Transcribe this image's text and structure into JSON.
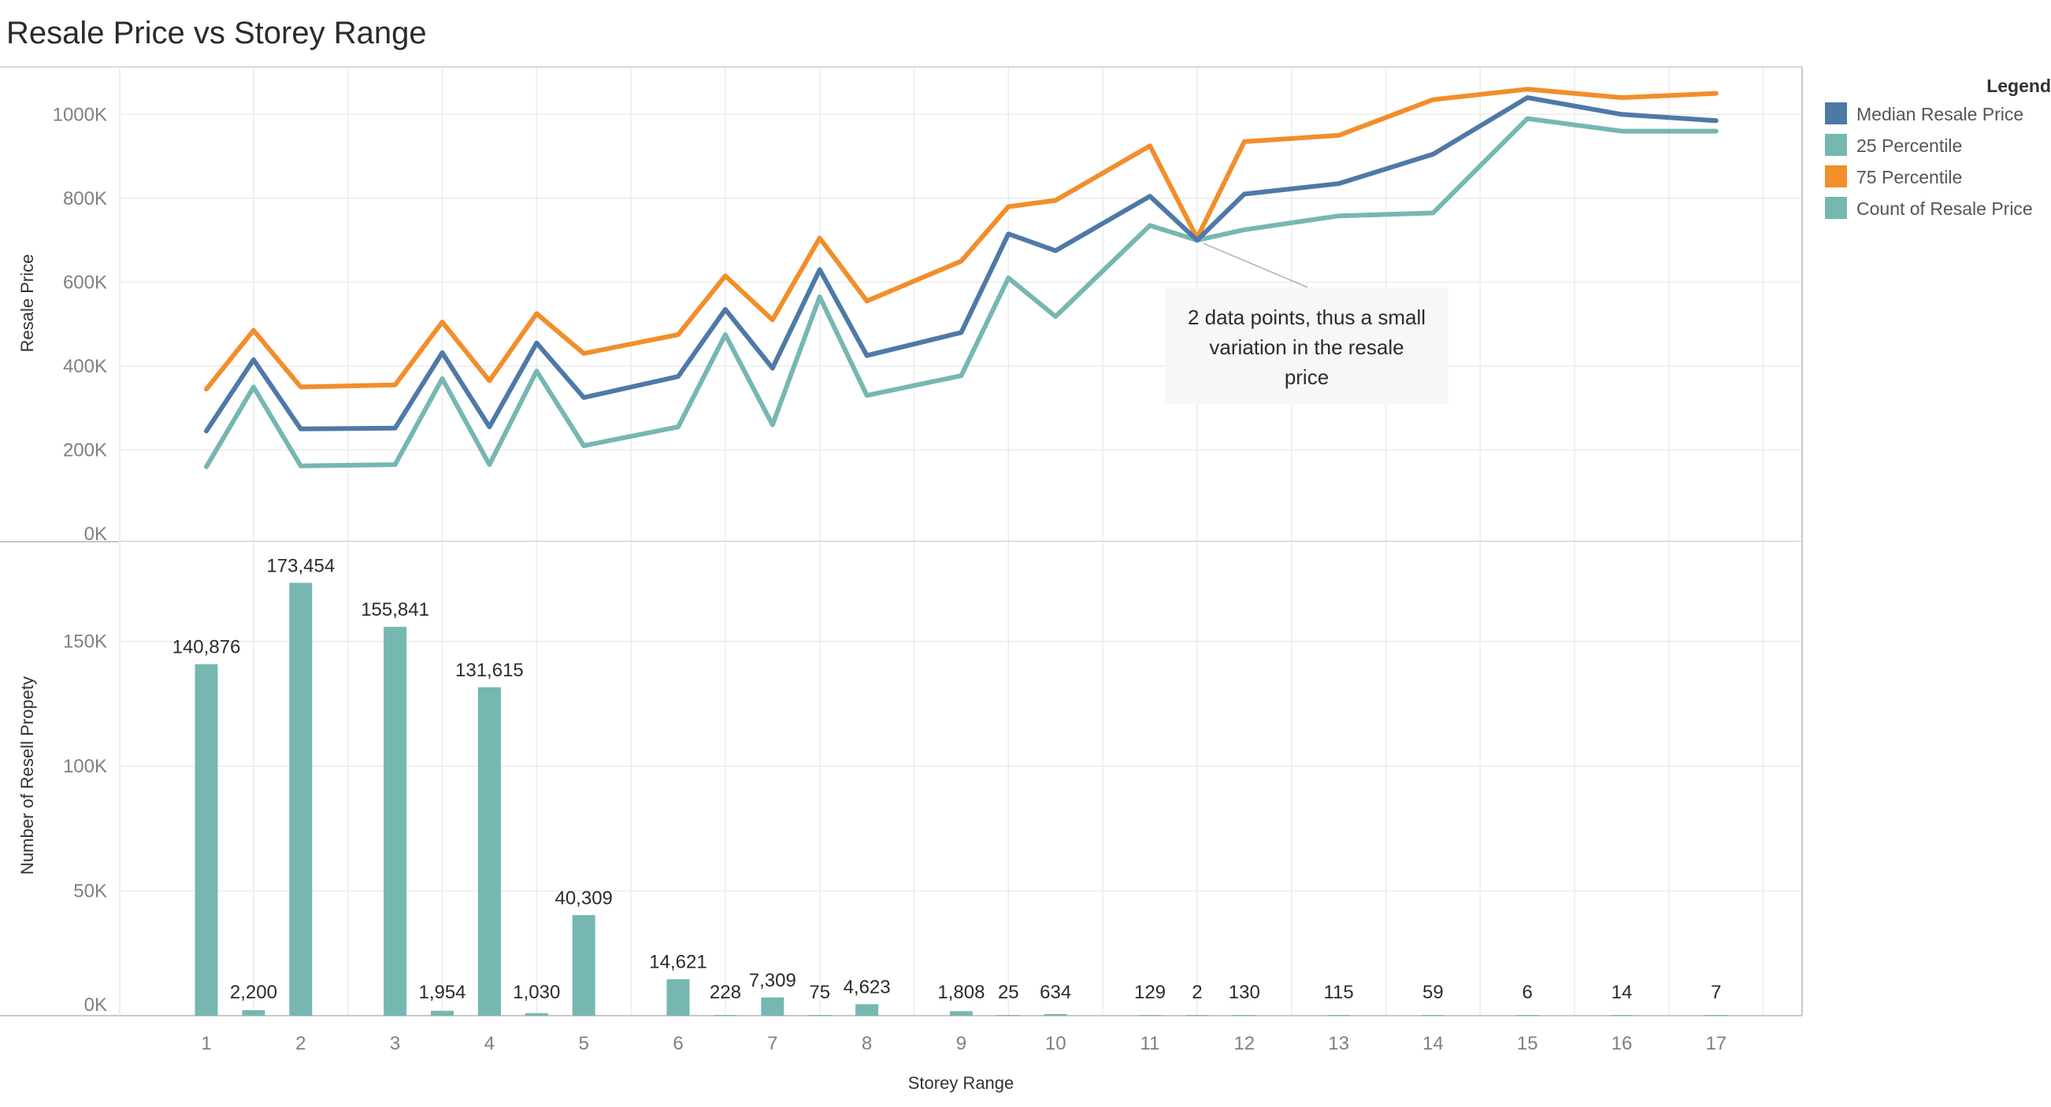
{
  "chart_data": {
    "title": "Resale Price vs Storey Range",
    "xlabel": "Storey Range",
    "type": "line+bar",
    "x_ticks": [
      "1",
      "2",
      "3",
      "4",
      "5",
      "6",
      "7",
      "8",
      "9",
      "10",
      "11",
      "12",
      "13",
      "14",
      "15",
      "16",
      "17"
    ],
    "x": [
      1,
      1.5,
      2,
      3,
      3.5,
      4,
      4.5,
      5,
      6,
      6.5,
      7,
      7.5,
      8,
      9,
      9.5,
      10,
      11,
      11.5,
      12,
      13,
      14,
      15,
      16,
      17
    ],
    "price_panel": {
      "ylabel": "Resale Price",
      "ylim": [
        0,
        1100000
      ],
      "y_ticks": [
        0,
        200000,
        400000,
        600000,
        800000,
        1000000
      ],
      "y_tick_labels": [
        "0K",
        "200K",
        "400K",
        "600K",
        "800K",
        "1000K"
      ],
      "grid": true,
      "series": [
        {
          "name": "75 Percentile",
          "color": "#f28e2b",
          "values": [
            345000,
            485000,
            350000,
            355000,
            505000,
            365000,
            525000,
            430000,
            475000,
            615000,
            510000,
            705000,
            555000,
            650000,
            780000,
            795000,
            925000,
            705000,
            935000,
            950000,
            1035000,
            1060000,
            1040000,
            1050000
          ]
        },
        {
          "name": "Median Resale Price",
          "color": "#4e79a7",
          "values": [
            245000,
            415000,
            250000,
            252000,
            432000,
            255000,
            455000,
            325000,
            375000,
            535000,
            395000,
            630000,
            425000,
            480000,
            715000,
            675000,
            805000,
            700000,
            810000,
            835000,
            905000,
            1040000,
            1000000,
            985000
          ]
        },
        {
          "name": "25 Percentile",
          "color": "#76b7b2",
          "values": [
            160000,
            350000,
            162000,
            165000,
            370000,
            165000,
            388000,
            210000,
            255000,
            475000,
            260000,
            565000,
            330000,
            377000,
            610000,
            518000,
            735000,
            700000,
            725000,
            758000,
            765000,
            990000,
            960000,
            960000
          ]
        }
      ],
      "annotation": {
        "lines": [
          "2 data points, thus a small",
          "variation in the resale",
          "price"
        ],
        "target_x": 11.5,
        "target_value": 700000
      }
    },
    "count_panel": {
      "ylabel": "Number of Resell Propety",
      "ylim": [
        0,
        195000
      ],
      "y_ticks": [
        0,
        50000,
        100000,
        150000
      ],
      "y_tick_labels": [
        "0K",
        "50K",
        "100K",
        "150K"
      ],
      "grid": true,
      "series_name": "Count of Resale Price",
      "color": "#76b7b2",
      "values": [
        140876,
        2200,
        173454,
        155841,
        1954,
        131615,
        1030,
        40309,
        14621,
        228,
        7309,
        75,
        4623,
        1808,
        25,
        634,
        129,
        2,
        130,
        115,
        59,
        6,
        14,
        7
      ],
      "labels": [
        "140,876",
        "2,200",
        "173,454",
        "155,841",
        "1,954",
        "131,615",
        "1,030",
        "40,309",
        "14,621",
        "228",
        "7,309",
        "75",
        "4,623",
        "1,808",
        "25",
        "634",
        "129",
        "2",
        "130",
        "115",
        "59",
        "6",
        "14",
        "7"
      ]
    },
    "legend": {
      "title": "Legend",
      "position": "top-right",
      "items": [
        {
          "label": "Median Resale Price",
          "color": "#4e79a7"
        },
        {
          "label": "25 Percentile",
          "color": "#76b7b2"
        },
        {
          "label": "75 Percentile",
          "color": "#f28e2b"
        },
        {
          "label": "Count of Resale Price",
          "color": "#76b7b2"
        }
      ]
    }
  }
}
